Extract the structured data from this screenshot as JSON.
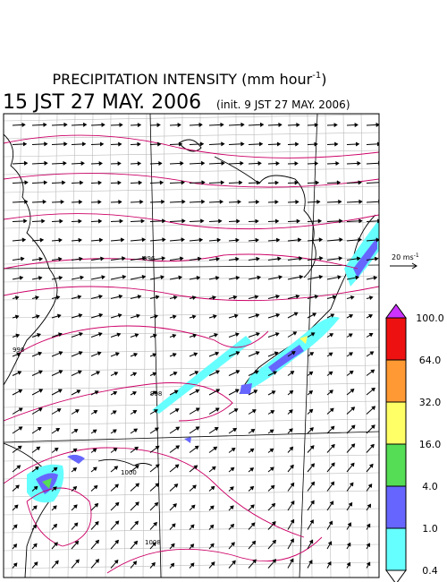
{
  "header": {
    "title": "PRECIPITATION INTENSITY (mm hour",
    "title_superscript": "-1",
    "title_close": ")",
    "valid_time": "15 JST 27 MAY. 2006",
    "init_time": "(init. 9 JST 27 MAY. 2006)"
  },
  "wind_scale": {
    "label": "20 ms",
    "superscript": "-1"
  },
  "colorbar": {
    "labels": [
      "100.0",
      "64.0",
      "32.0",
      "16.0",
      "4.0",
      "1.0",
      "0.4"
    ],
    "colors": [
      "#cc33ff",
      "#ee1111",
      "#ff9933",
      "#ffff66",
      "#55dd55",
      "#6666ff",
      "#66ffff",
      "#ffffff"
    ]
  },
  "contour_labels": [
    "996",
    "998",
    "998",
    "1000",
    "1008"
  ]
}
